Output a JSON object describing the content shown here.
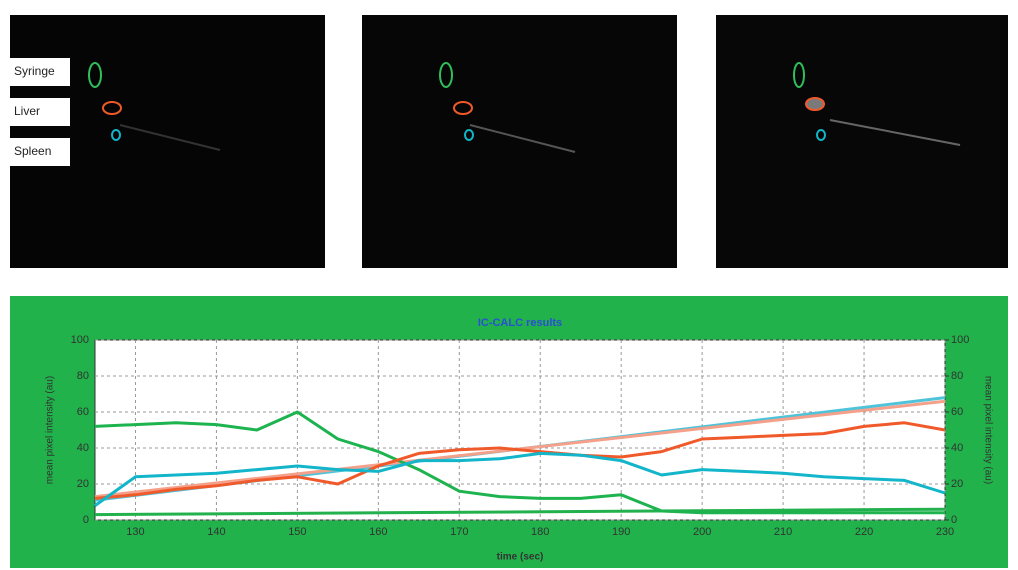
{
  "panels": {
    "labels": [
      "Syringe",
      "Liver",
      "Spleen"
    ]
  },
  "chart_data": {
    "type": "line",
    "title": "IC-CALC results",
    "x_label": "time (sec)",
    "y_label": "mean pixel intensity (au)",
    "y2_label": "mean pixel intensity (au)",
    "xlim": [
      125,
      230
    ],
    "xticks": [
      130,
      140,
      150,
      160,
      170,
      180,
      190,
      200,
      210,
      220,
      230
    ],
    "ylim": [
      0,
      100
    ],
    "yticks": [
      0,
      20,
      40,
      60,
      80,
      100
    ],
    "y2lim": [
      0,
      100
    ],
    "y2ticks": [
      0,
      20,
      40,
      60,
      80,
      100
    ],
    "grid": true,
    "series": [
      {
        "color": "#4fc3d9",
        "x": [
          125,
          230
        ],
        "values": [
          11,
          68
        ]
      },
      {
        "color": "#f4a08a",
        "x": [
          125,
          230
        ],
        "values": [
          13,
          66
        ]
      },
      {
        "color": "#22b14c",
        "x": [
          125,
          230
        ],
        "values": [
          3,
          6
        ]
      },
      {
        "color": "#1db34f",
        "x": [
          125,
          130,
          135,
          140,
          145,
          150,
          155,
          160,
          165,
          170,
          175,
          180,
          185,
          190,
          195,
          200,
          205,
          210,
          215,
          220,
          225,
          230
        ],
        "values": [
          52,
          53,
          54,
          53,
          50,
          60,
          45,
          38,
          28,
          16,
          13,
          12,
          12,
          14,
          5,
          4,
          4,
          4,
          4,
          4,
          4,
          4
        ]
      },
      {
        "color": "#f05a2a",
        "x": [
          125,
          130,
          135,
          140,
          145,
          150,
          155,
          160,
          165,
          170,
          175,
          180,
          185,
          190,
          195,
          200,
          205,
          210,
          215,
          220,
          225,
          230
        ],
        "values": [
          12,
          14,
          17,
          19,
          22,
          24,
          20,
          30,
          37,
          39,
          40,
          38,
          36,
          35,
          38,
          45,
          46,
          47,
          48,
          52,
          54,
          50
        ]
      },
      {
        "color": "#12b5c9",
        "x": [
          125,
          130,
          135,
          140,
          145,
          150,
          155,
          160,
          165,
          170,
          175,
          180,
          185,
          190,
          195,
          200,
          205,
          210,
          215,
          220,
          225,
          230
        ],
        "values": [
          8,
          24,
          25,
          26,
          28,
          30,
          28,
          27,
          33,
          33,
          34,
          37,
          36,
          33,
          25,
          28,
          27,
          26,
          24,
          23,
          22,
          15
        ]
      }
    ]
  }
}
